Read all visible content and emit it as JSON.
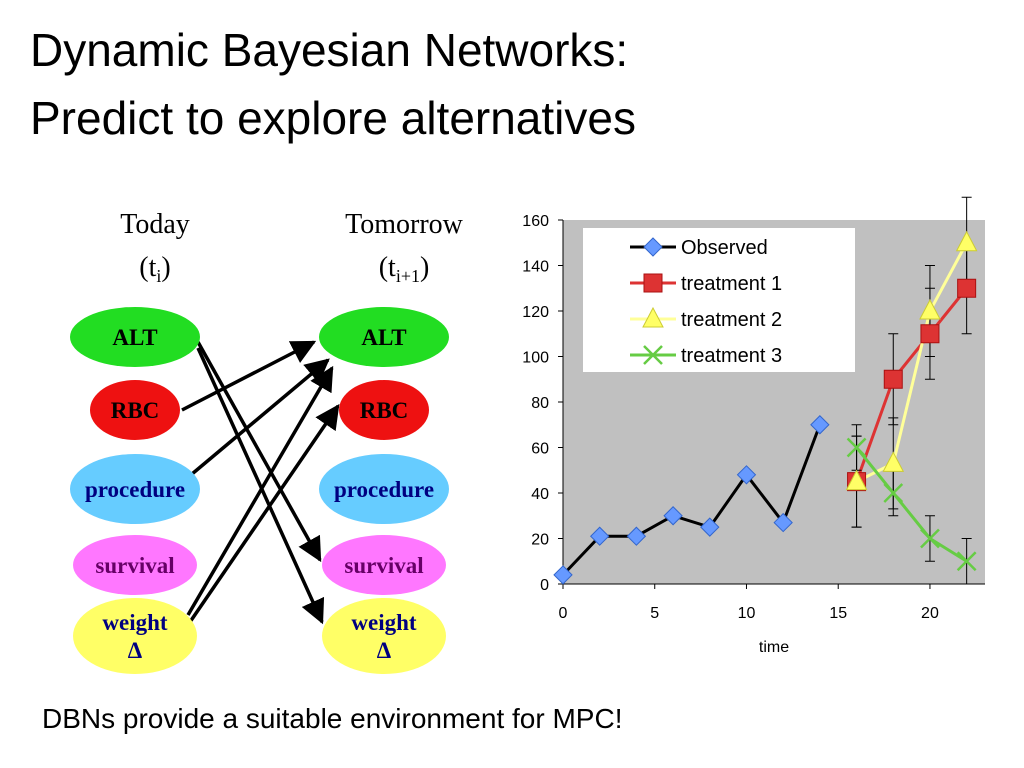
{
  "slide": {
    "title": [
      "Dynamic Bayesian Networks:",
      "Predict to explore alternatives"
    ],
    "footer": "DBNs provide a suitable environment for MPC!"
  },
  "diagram": {
    "columns": [
      {
        "heading": "Today",
        "open": "(t",
        "sub": "i",
        "close": ")"
      },
      {
        "heading": "Tomorrow",
        "open": "(t",
        "sub": "i+1",
        "close": ")"
      }
    ],
    "nodes": [
      {
        "label": [
          "ALT"
        ]
      },
      {
        "label": [
          "RBC"
        ]
      },
      {
        "label": [
          "procedure"
        ]
      },
      {
        "label": [
          "survival"
        ]
      },
      {
        "label": [
          "weight",
          "Δ"
        ]
      }
    ]
  },
  "chart_data": {
    "type": "line",
    "xlabel": "time",
    "xlim": [
      0,
      23
    ],
    "xticks": [
      0,
      5,
      10,
      15,
      20
    ],
    "ylim": [
      0,
      160
    ],
    "yticks": [
      0,
      20,
      40,
      60,
      80,
      100,
      120,
      140,
      160
    ],
    "legend": "top-left",
    "series": [
      {
        "name": "Observed",
        "color": "#6699ff",
        "line_color": "#000000",
        "marker": "diamond",
        "x": [
          0,
          2,
          4,
          6,
          8,
          10,
          12,
          14
        ],
        "values": [
          4,
          21,
          21,
          30,
          25,
          48,
          27,
          70
        ]
      },
      {
        "name": "treatment 1",
        "color": "#dd3333",
        "line_color": "#dd3333",
        "marker": "square",
        "x": [
          16,
          18,
          20,
          22
        ],
        "values": [
          45,
          90,
          110,
          130
        ],
        "errors": [
          20,
          20,
          20,
          20
        ]
      },
      {
        "name": "treatment 2",
        "color": "#ffff66",
        "line_color": "#ffff99",
        "marker": "triangle",
        "x": [
          16,
          18,
          20,
          22
        ],
        "values": [
          45,
          53,
          120,
          150
        ],
        "errors": [
          20,
          20,
          20,
          20
        ]
      },
      {
        "name": "treatment 3",
        "color": "#66cc44",
        "line_color": "#66cc44",
        "marker": "x",
        "x": [
          16,
          18,
          20,
          22
        ],
        "values": [
          60,
          40,
          20,
          10
        ],
        "errors": [
          10,
          10,
          10,
          10
        ]
      }
    ]
  }
}
